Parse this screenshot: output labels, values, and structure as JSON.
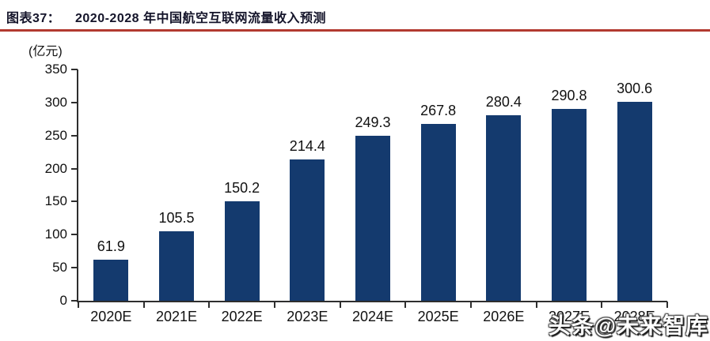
{
  "header": {
    "figure_label": "图表37：",
    "title": "2020-2028 年中国航空互联网流量收入预测"
  },
  "chart": {
    "unit_label": "(亿元)"
  },
  "watermark": {
    "text": "头条@未来智库"
  },
  "colors": {
    "bar": "#143a6e",
    "title_rule": "#b23a30",
    "axis": "#2e2e2e",
    "text": "#111111",
    "title_text": "#14142a"
  },
  "chart_data": {
    "type": "bar",
    "title": "2020-2028 年中国航空互联网流量收入预测",
    "categories": [
      "2020E",
      "2021E",
      "2022E",
      "2023E",
      "2024E",
      "2025E",
      "2026E",
      "2027E",
      "2028E"
    ],
    "values": [
      61.9,
      105.5,
      150.2,
      214.4,
      249.3,
      267.8,
      280.4,
      290.8,
      300.6
    ],
    "xlabel": "",
    "ylabel": "(亿元)",
    "ylim": [
      0,
      350
    ],
    "y_ticks": [
      0,
      50,
      100,
      150,
      200,
      250,
      300,
      350
    ],
    "grid": false,
    "legend": false,
    "data_labels": true,
    "bar_color": "#143a6e"
  }
}
